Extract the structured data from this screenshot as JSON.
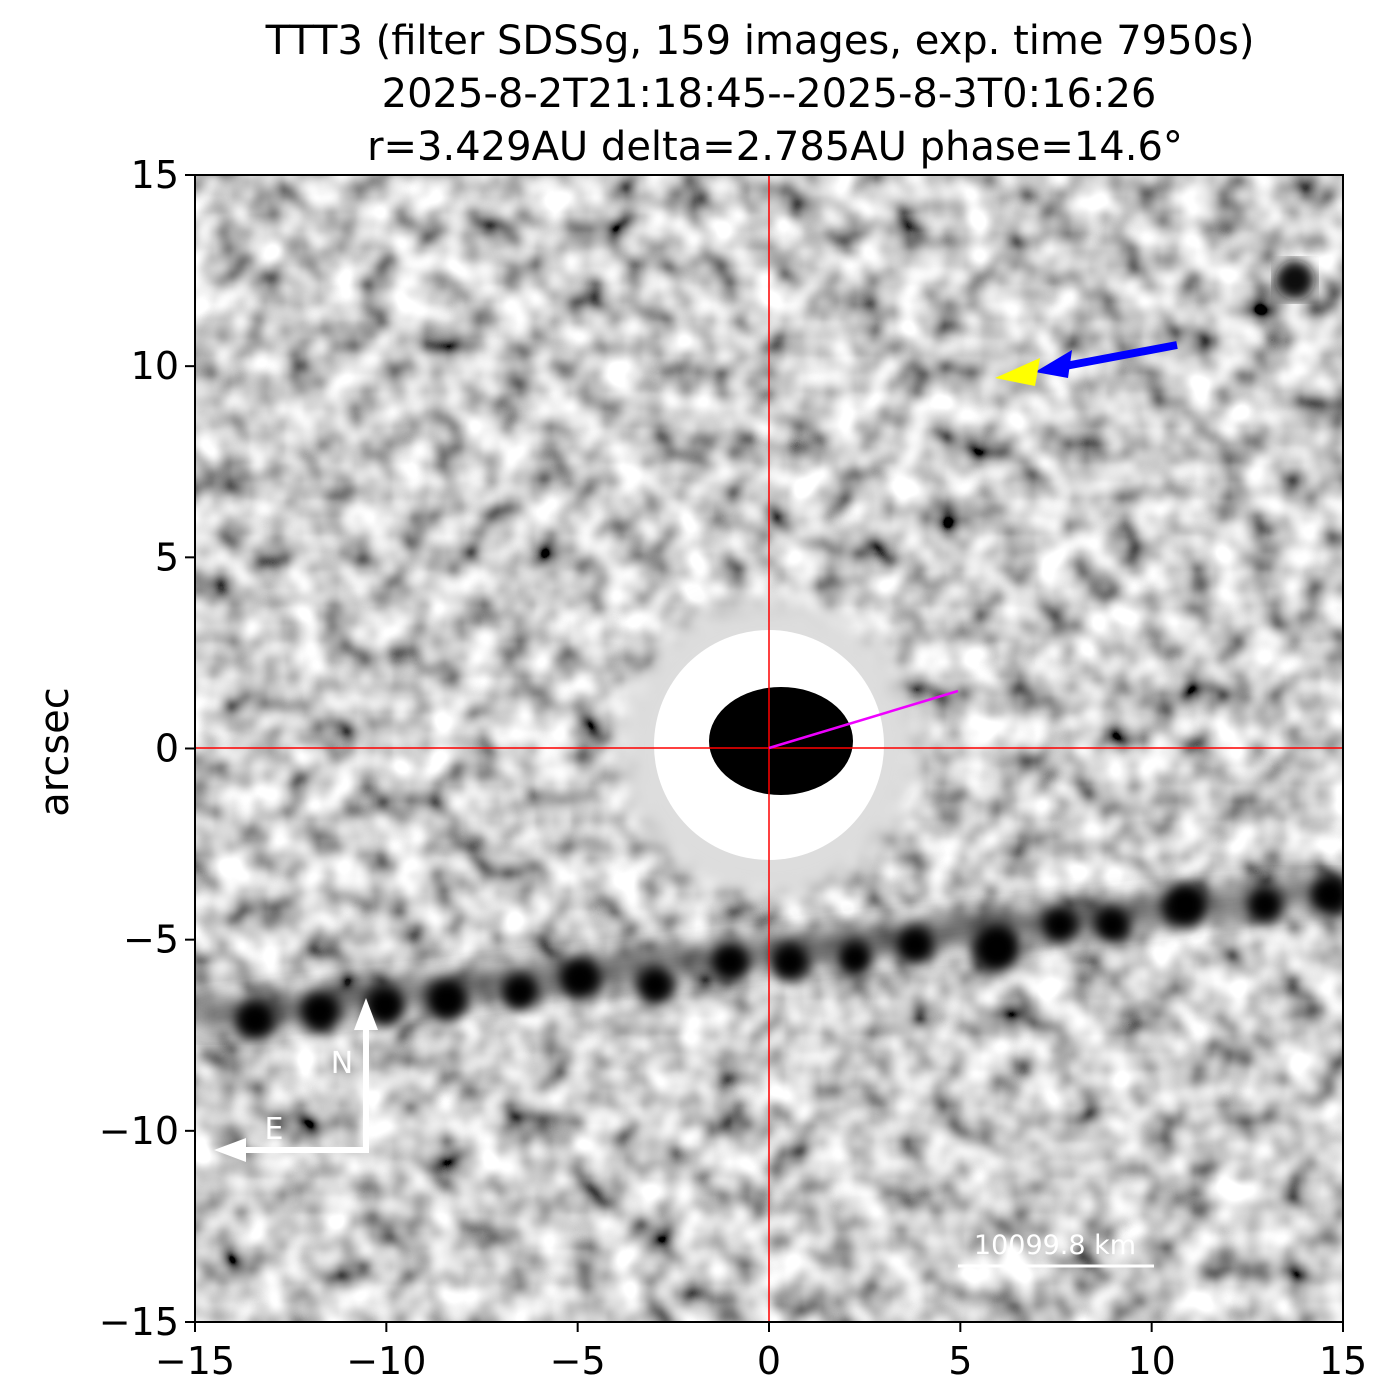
{
  "chart_data": {
    "type": "image",
    "title": [
      "TTT3 (filter SDSSg, 159 images, exp. time 7950s)",
      "2025-8-2T21:18:45--2025-8-3T0:16:26",
      "r=3.429AU delta=2.785AU phase=14.6°"
    ],
    "ylabel": "arcsec",
    "xlim": [
      -15,
      15
    ],
    "ylim": [
      -15,
      15
    ],
    "xticks": [
      {
        "value": -15,
        "label": "−15"
      },
      {
        "value": -10,
        "label": "−10"
      },
      {
        "value": -5,
        "label": "−5"
      },
      0,
      5,
      10,
      15
    ],
    "yticks": [
      {
        "value": -15,
        "label": "−15"
      },
      {
        "value": -10,
        "label": "−10"
      },
      {
        "value": -5,
        "label": "−5"
      },
      0,
      5,
      10,
      15
    ],
    "annotations": {
      "north": "N",
      "east": "E",
      "scale_bar": "10099.8 km"
    }
  }
}
